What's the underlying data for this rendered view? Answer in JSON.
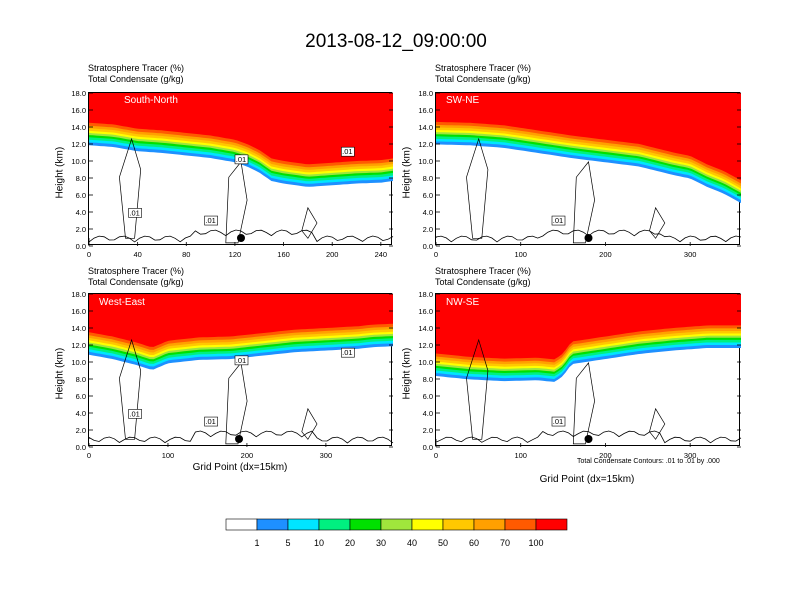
{
  "title": "2013-08-12_09:00:00",
  "field_labels": {
    "tracer": "Stratosphere Tracer   (%)",
    "condensate": "Total Condensate   (g/kg)"
  },
  "y_axis_label": "Height (km)",
  "x_axis_label": "Grid Point (dx=15km)",
  "contour_note": "Total Condensate Contours: .01 to .01 by .000",
  "colorbar": {
    "colors": [
      "#ffffff",
      "#1e90ff",
      "#00e5ff",
      "#00f080",
      "#00e000",
      "#a0e63c",
      "#ffff00",
      "#ffc800",
      "#ffa000",
      "#ff5a00",
      "#ff0000"
    ],
    "labels": [
      "1",
      "5",
      "10",
      "20",
      "30",
      "40",
      "50",
      "60",
      "70",
      "100"
    ]
  },
  "chart_data": [
    {
      "type": "contour",
      "name": "South-North",
      "title": "South-North",
      "xlim": [
        0,
        250
      ],
      "ylim": [
        0,
        18
      ],
      "x_ticks": [
        "0",
        "40",
        "80",
        "120",
        "160",
        "200",
        "240"
      ],
      "x_tick_values": [
        0,
        40,
        80,
        120,
        160,
        200,
        240
      ],
      "y_ticks": [
        "0.0",
        "2.0",
        "4.0",
        "6.0",
        "8.0",
        "10.0",
        "12.0",
        "14.0",
        "16.0",
        "18.0"
      ],
      "tropopause_x": [
        0,
        20,
        40,
        60,
        80,
        100,
        120,
        130,
        140,
        150,
        160,
        180,
        200,
        220,
        240,
        250
      ],
      "tropopause_km": [
        14.5,
        14.3,
        13.8,
        13.6,
        13.3,
        13.0,
        12.5,
        12.0,
        11.3,
        10.3,
        10.0,
        9.6,
        9.8,
        10.0,
        10.1,
        10.3
      ],
      "contour_labels": [
        ".01",
        ".01",
        ".01",
        ".01"
      ],
      "marker_x": 125
    },
    {
      "type": "contour",
      "name": "SW-NE",
      "title": "SW-NE",
      "xlim": [
        0,
        360
      ],
      "ylim": [
        0,
        18
      ],
      "x_ticks": [
        "0",
        "100",
        "200",
        "300"
      ],
      "x_tick_values": [
        0,
        100,
        200,
        300
      ],
      "y_ticks": [
        "0.0",
        "2.0",
        "4.0",
        "6.0",
        "8.0",
        "10.0",
        "12.0",
        "14.0",
        "16.0",
        "18.0"
      ],
      "tropopause_x": [
        0,
        40,
        80,
        120,
        160,
        200,
        240,
        280,
        300,
        320,
        340,
        360
      ],
      "tropopause_km": [
        14.6,
        14.5,
        14.2,
        13.6,
        13.0,
        12.5,
        12.0,
        11.0,
        10.6,
        9.6,
        8.8,
        7.7
      ],
      "contour_labels": [
        ".01"
      ],
      "marker_x": 180
    },
    {
      "type": "contour",
      "name": "West-East",
      "title": "West-East",
      "xlim": [
        0,
        385
      ],
      "ylim": [
        0,
        18
      ],
      "x_ticks": [
        "0",
        "100",
        "200",
        "300"
      ],
      "x_tick_values": [
        0,
        100,
        200,
        300
      ],
      "y_ticks": [
        "0.0",
        "2.0",
        "4.0",
        "6.0",
        "8.0",
        "10.0",
        "12.0",
        "14.0",
        "16.0",
        "18.0"
      ],
      "tropopause_x": [
        0,
        30,
        60,
        80,
        100,
        140,
        180,
        220,
        260,
        300,
        340,
        360,
        385
      ],
      "tropopause_km": [
        13.5,
        13.0,
        12.3,
        11.7,
        12.5,
        12.9,
        13.0,
        13.4,
        13.8,
        14.0,
        14.2,
        14.4,
        14.5
      ],
      "contour_labels": [
        ".01",
        ".01",
        ".01",
        ".01"
      ],
      "marker_x": 190
    },
    {
      "type": "contour",
      "name": "NW-SE",
      "title": "NW-SE",
      "xlim": [
        0,
        360
      ],
      "ylim": [
        0,
        18
      ],
      "x_ticks": [
        "0",
        "100",
        "200",
        "300"
      ],
      "x_tick_values": [
        0,
        100,
        200,
        300
      ],
      "y_ticks": [
        "0.0",
        "2.0",
        "4.0",
        "6.0",
        "8.0",
        "10.0",
        "12.0",
        "14.0",
        "16.0",
        "18.0"
      ],
      "tropopause_x": [
        0,
        40,
        80,
        120,
        140,
        150,
        160,
        200,
        240,
        280,
        320,
        360
      ],
      "tropopause_km": [
        11.0,
        10.6,
        10.4,
        10.5,
        10.3,
        11.0,
        12.4,
        13.0,
        13.6,
        14.0,
        14.3,
        14.3
      ],
      "contour_labels": [
        ".01"
      ],
      "marker_x": 180
    }
  ]
}
